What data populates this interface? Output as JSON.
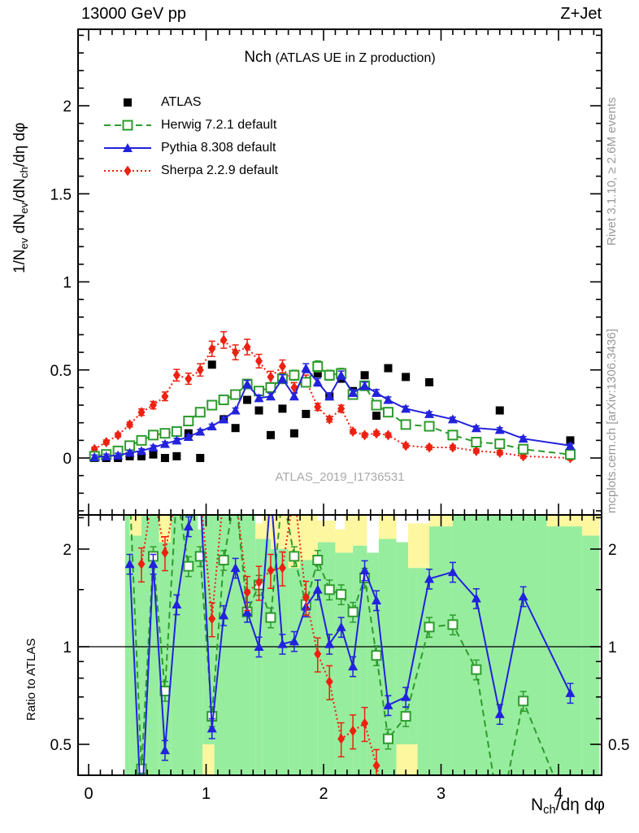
{
  "header": {
    "left": "13000 GeV pp",
    "right": "Z+Jet"
  },
  "panel": {
    "title_main": "Nch",
    "title_paren": "(ATLAS UE in Z production)",
    "watermark": "ATLAS_2019_I1736531"
  },
  "side_notes": {
    "rivet": "Rivet 3.1.10, ≥ 2.6M events",
    "mcplots": "mcplots.cern.ch [arXiv:1306.3436]"
  },
  "legend": {
    "items": [
      {
        "id": "atlas",
        "label": "ATLAS",
        "marker": "square-filled",
        "color": "#000000",
        "line": "none"
      },
      {
        "id": "herwig",
        "label": "Herwig 7.2.1 default",
        "marker": "square-open",
        "color": "#2e9b2e",
        "line": "dashed"
      },
      {
        "id": "pythia",
        "label": "Pythia 8.308 default",
        "marker": "triangle-filled",
        "color": "#2222dd",
        "line": "solid"
      },
      {
        "id": "sherpa",
        "label": "Sherpa 2.2.9 default",
        "marker": "diamond-filled",
        "color": "#ee2010",
        "line": "dotted"
      }
    ]
  },
  "axes": {
    "x": {
      "label_parts": [
        {
          "t": "N"
        },
        {
          "sub": "ch"
        },
        {
          "t": "/dη dφ"
        }
      ],
      "ticks": [
        0,
        1,
        2,
        3,
        4
      ],
      "minor_step": 0.1,
      "range": [
        -0.09,
        4.37
      ]
    },
    "y_main": {
      "label_parts": [
        {
          "t": "1/N"
        },
        {
          "sub": "ev"
        },
        {
          "t": " dN"
        },
        {
          "sub": "ev"
        },
        {
          "t": "/dN"
        },
        {
          "sub": "ch"
        },
        {
          "t": "/dη dφ"
        }
      ],
      "ticks": [
        [
          0,
          "0"
        ],
        [
          0.5,
          "0.5"
        ],
        [
          1,
          "1"
        ],
        [
          1.5,
          "1.5"
        ],
        [
          2,
          "2"
        ]
      ],
      "minor_step": 0.1,
      "range": [
        -0.32,
        2.43
      ]
    },
    "y_ratio": {
      "label": "Ratio to ATLAS",
      "scale": "log",
      "ticks": [
        [
          0.5,
          "0.5"
        ],
        [
          1,
          "1"
        ],
        [
          2,
          "2"
        ]
      ],
      "minors": [
        0.4,
        0.6,
        0.7,
        0.8,
        0.9,
        1.5,
        2.5
      ],
      "range": [
        0.4,
        2.55
      ]
    }
  },
  "chart_data": {
    "type": "line",
    "title": "Nch (ATLAS UE in Z production)",
    "x": [
      0.05,
      0.15,
      0.25,
      0.35,
      0.45,
      0.55,
      0.65,
      0.75,
      0.85,
      0.95,
      1.05,
      1.15,
      1.25,
      1.35,
      1.45,
      1.55,
      1.65,
      1.75,
      1.85,
      1.95,
      2.05,
      2.15,
      2.25,
      2.35,
      2.45,
      2.55,
      2.7,
      2.9,
      3.1,
      3.3,
      3.5,
      3.7,
      4.1
    ],
    "series": [
      {
        "name": "ATLAS",
        "color": "#000000",
        "marker": "square-filled",
        "line": "none",
        "err_frac": 0,
        "values": [
          0.0,
          0.0,
          0.0,
          0.01,
          0.01,
          0.02,
          0.0,
          0.01,
          0.14,
          0.0,
          0.53,
          0.22,
          0.17,
          0.33,
          0.27,
          0.13,
          0.28,
          0.14,
          0.25,
          0.48,
          0.35,
          0.45,
          0.38,
          0.47,
          0.24,
          0.51,
          0.46,
          0.43,
          null,
          null,
          0.27,
          null,
          0.1
        ]
      },
      {
        "name": "Herwig 7.2.1 default",
        "color": "#2e9b2e",
        "marker": "square-open",
        "line": "dashed",
        "err_frac": 0.06,
        "values": [
          0.01,
          0.02,
          0.04,
          0.07,
          0.1,
          0.13,
          0.14,
          0.15,
          0.21,
          0.26,
          0.3,
          0.33,
          0.36,
          0.42,
          0.38,
          0.4,
          0.45,
          0.47,
          0.43,
          0.52,
          0.47,
          0.48,
          0.36,
          0.41,
          0.3,
          0.26,
          0.19,
          0.18,
          0.13,
          0.09,
          0.08,
          0.05,
          0.02
        ]
      },
      {
        "name": "Pythia 8.308 default",
        "color": "#2222dd",
        "marker": "triangle-filled",
        "line": "solid",
        "err_frac": 0.05,
        "values": [
          0.005,
          0.01,
          0.015,
          0.03,
          0.04,
          0.06,
          0.08,
          0.1,
          0.12,
          0.15,
          0.18,
          0.22,
          0.27,
          0.42,
          0.34,
          0.35,
          0.45,
          0.35,
          0.51,
          0.43,
          0.35,
          0.47,
          0.37,
          0.41,
          0.37,
          0.33,
          0.28,
          0.25,
          0.22,
          0.17,
          0.16,
          0.11,
          0.07
        ]
      },
      {
        "name": "Sherpa 2.2.9 default",
        "color": "#ee2010",
        "marker": "diamond-filled",
        "line": "dotted",
        "err_frac": 0.07,
        "values": [
          0.05,
          0.09,
          0.13,
          0.19,
          0.26,
          0.3,
          0.35,
          0.47,
          0.45,
          0.5,
          0.62,
          0.67,
          0.6,
          0.63,
          0.55,
          0.46,
          0.52,
          0.4,
          0.44,
          0.29,
          0.22,
          0.28,
          0.15,
          0.13,
          0.14,
          0.13,
          0.07,
          0.06,
          0.06,
          0.04,
          0.03,
          0.01,
          0.0
        ]
      }
    ],
    "ratio": {
      "ylabel": "Ratio to ATLAS",
      "reference": 1,
      "series": [
        {
          "name": "Herwig 7.2.1 default",
          "color": "#2e9b2e",
          "marker": "square-open",
          "line": "dashed",
          "err_frac": 0.07,
          "values": [
            null,
            null,
            null,
            3.0,
            0.42,
            1.9,
            0.73,
            3.0,
            1.77,
            1.9,
            0.61,
            1.85,
            3.0,
            1.28,
            1.55,
            1.23,
            3.0,
            1.9,
            1.35,
            1.85,
            1.5,
            1.45,
            1.28,
            1.63,
            0.94,
            0.52,
            0.61,
            1.15,
            1.17,
            0.85,
            0.3,
            0.68,
            0.3
          ]
        },
        {
          "name": "Pythia 8.308 default",
          "color": "#2222dd",
          "marker": "triangle-filled",
          "line": "solid",
          "err_frac": 0.07,
          "values": [
            null,
            null,
            null,
            1.8,
            0.3,
            1.8,
            0.48,
            1.35,
            2.35,
            3.0,
            0.56,
            1.25,
            1.75,
            1.28,
            1.0,
            3.0,
            1.02,
            1.04,
            1.33,
            1.5,
            1.02,
            1.15,
            0.87,
            1.72,
            1.39,
            0.66,
            0.7,
            1.62,
            1.7,
            1.41,
            0.62,
            1.43,
            0.72
          ]
        },
        {
          "name": "Sherpa 2.2.9 default",
          "color": "#ee2010",
          "marker": "diamond-filled",
          "line": "dotted",
          "err_frac": 0.12,
          "values": [
            null,
            null,
            null,
            null,
            1.8,
            3.0,
            1.95,
            3.0,
            3.0,
            3.0,
            1.22,
            3.0,
            3.0,
            1.47,
            1.58,
            1.72,
            1.75,
            3.0,
            1.42,
            0.95,
            0.78,
            0.52,
            0.55,
            0.58,
            0.43,
            0.3,
            null,
            null,
            null,
            null,
            null,
            null,
            null
          ]
        }
      ]
    },
    "bands": {
      "green_color": "#97ed9e",
      "yellow_color": "#fdf7a0",
      "columns": [
        {
          "x0": 0.31,
          "x1": 0.35,
          "g": [
            0.4,
            2.55
          ]
        },
        {
          "x0": 0.35,
          "x1": 0.45,
          "g": [
            0.4,
            2.2
          ],
          "y": [
            [
              2.2,
              2.55
            ]
          ]
        },
        {
          "x0": 0.45,
          "x1": 0.6,
          "g": [
            0.4,
            2.55
          ]
        },
        {
          "x0": 0.6,
          "x1": 0.7,
          "g": [
            0.4,
            2.1
          ],
          "y": [
            [
              2.1,
              2.55
            ]
          ]
        },
        {
          "x0": 0.7,
          "x1": 0.93,
          "g": [
            0.4,
            2.55
          ]
        },
        {
          "x0": 0.93,
          "x1": 0.97,
          "g": [
            0.4,
            2.3
          ]
        },
        {
          "x0": 0.97,
          "x1": 1.07,
          "g": [
            0.5,
            2.55
          ],
          "y": [
            [
              0.4,
              0.5
            ]
          ]
        },
        {
          "x0": 1.07,
          "x1": 1.42,
          "g": [
            0.4,
            2.55
          ]
        },
        {
          "x0": 1.42,
          "x1": 1.48,
          "g": [
            0.4,
            2.15
          ],
          "y": [
            [
              2.15,
              2.4
            ]
          ]
        },
        {
          "x0": 1.48,
          "x1": 1.55,
          "g": [
            0.4,
            2.15
          ],
          "y": [
            [
              2.15,
              2.55
            ]
          ]
        },
        {
          "x0": 1.55,
          "x1": 1.7,
          "g": [
            0.4,
            2.0
          ],
          "y": [
            [
              2.0,
              2.55
            ]
          ]
        },
        {
          "x0": 1.7,
          "x1": 1.8,
          "g": [
            0.4,
            1.75
          ],
          "y": [
            [
              1.75,
              2.55
            ]
          ]
        },
        {
          "x0": 1.8,
          "x1": 1.95,
          "g": [
            0.4,
            1.85
          ],
          "y": [
            [
              1.85,
              2.55
            ]
          ]
        },
        {
          "x0": 1.95,
          "x1": 2.1,
          "g": [
            0.4,
            2.1
          ],
          "y": [
            [
              2.1,
              2.45
            ]
          ]
        },
        {
          "x0": 2.1,
          "x1": 2.18,
          "g": [
            0.4,
            1.95
          ],
          "y": [
            [
              1.95,
              2.3
            ]
          ]
        },
        {
          "x0": 2.18,
          "x1": 2.25,
          "g": [
            0.4,
            1.95
          ],
          "y": [
            [
              1.95,
              2.55
            ]
          ]
        },
        {
          "x0": 2.25,
          "x1": 2.37,
          "g": [
            0.4,
            2.05
          ],
          "y": [
            [
              2.05,
              2.55
            ]
          ]
        },
        {
          "x0": 2.37,
          "x1": 2.47,
          "g": [
            0.4,
            1.95
          ]
        },
        {
          "x0": 2.47,
          "x1": 2.62,
          "g": [
            0.4,
            2.15
          ],
          "y": [
            [
              2.15,
              2.55
            ]
          ]
        },
        {
          "x0": 2.62,
          "x1": 2.72,
          "g": [
            0.5,
            2.1
          ],
          "y": [
            [
              0.4,
              0.5
            ]
          ]
        },
        {
          "x0": 2.72,
          "x1": 2.8,
          "g": [
            0.5,
            1.75
          ],
          "y": [
            [
              1.75,
              2.4
            ],
            [
              0.4,
              0.5
            ]
          ]
        },
        {
          "x0": 2.8,
          "x1": 2.9,
          "g": [
            0.4,
            1.75
          ],
          "y": [
            [
              1.75,
              2.4
            ]
          ]
        },
        {
          "x0": 2.9,
          "x1": 3.1,
          "g": [
            0.4,
            2.35
          ],
          "y": [
            [
              2.35,
              2.55
            ]
          ]
        },
        {
          "x0": 3.1,
          "x1": 3.9,
          "g": [
            0.4,
            2.55
          ]
        },
        {
          "x0": 3.9,
          "x1": 4.2,
          "g": [
            0.4,
            2.35
          ],
          "y": [
            [
              2.35,
              2.55
            ]
          ]
        },
        {
          "x0": 4.2,
          "x1": 4.35,
          "g": [
            0.4,
            2.2
          ],
          "y": [
            [
              2.2,
              2.55
            ]
          ]
        }
      ]
    },
    "xlabel": "Nch/dη dφ",
    "ylabel": "1/Nev dNev/dNch/dη dφ",
    "xlim": [
      -0.09,
      4.37
    ],
    "ylim_main": [
      -0.32,
      2.43
    ],
    "ylim_ratio": [
      0.4,
      2.55
    ],
    "legend_position": "top-left",
    "grid": false
  }
}
